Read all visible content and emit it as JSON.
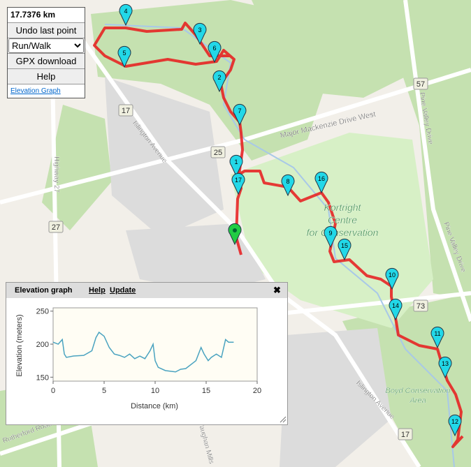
{
  "distance": "17.7376 km",
  "controls": {
    "undo": "Undo last point",
    "mode": "Run/Walk",
    "gpx": "GPX download",
    "help": "Help",
    "elevation_link": "Elevation Graph"
  },
  "map": {
    "labels": [
      "Major Mackenzie Drive West",
      "Islington Avenue",
      "Pine Valley Drive",
      "Pine Valley Drive",
      "Kortright",
      "Centre",
      "for Conservation",
      "Boyd Conservation",
      "Area",
      "Highway 27",
      "Rutherford Road",
      "Islington Avenue",
      "Vaughan Mills"
    ],
    "shields": [
      "17",
      "25",
      "27",
      "57",
      "73",
      "17"
    ]
  },
  "markers": [
    "1",
    "2",
    "3",
    "4",
    "5",
    "6",
    "7",
    "8",
    "9",
    "10",
    "11",
    "12",
    "13",
    "14",
    "15",
    "16",
    "17"
  ],
  "elevation_panel": {
    "title": "Elevation graph",
    "help": "Help",
    "update": "Update",
    "close": "✖"
  },
  "chart_data": {
    "type": "line",
    "xlabel": "Distance (km)",
    "ylabel": "Elevation (meters)",
    "x": [
      0,
      0.5,
      0.9,
      1.1,
      1.3,
      2,
      3,
      3.8,
      4.2,
      4.5,
      5,
      5.5,
      6,
      6.5,
      7,
      7.5,
      8,
      8.5,
      9,
      9.5,
      9.8,
      10,
      10.3,
      11,
      12,
      12.5,
      13,
      14,
      14.5,
      14.8,
      15.2,
      15.5,
      16,
      16.5,
      16.9,
      17.2,
      17.7
    ],
    "values": [
      203,
      200,
      207,
      185,
      180,
      182,
      183,
      190,
      210,
      218,
      212,
      195,
      185,
      183,
      180,
      185,
      178,
      182,
      178,
      190,
      200,
      175,
      165,
      160,
      158,
      162,
      163,
      175,
      195,
      185,
      175,
      180,
      185,
      180,
      207,
      203,
      203
    ],
    "color": "#4aa3c0",
    "xlim": [
      0,
      20
    ],
    "ylim": [
      144,
      255
    ],
    "xticks": [
      0,
      5,
      10,
      15,
      20
    ],
    "yticks": [
      150,
      200,
      250
    ]
  }
}
